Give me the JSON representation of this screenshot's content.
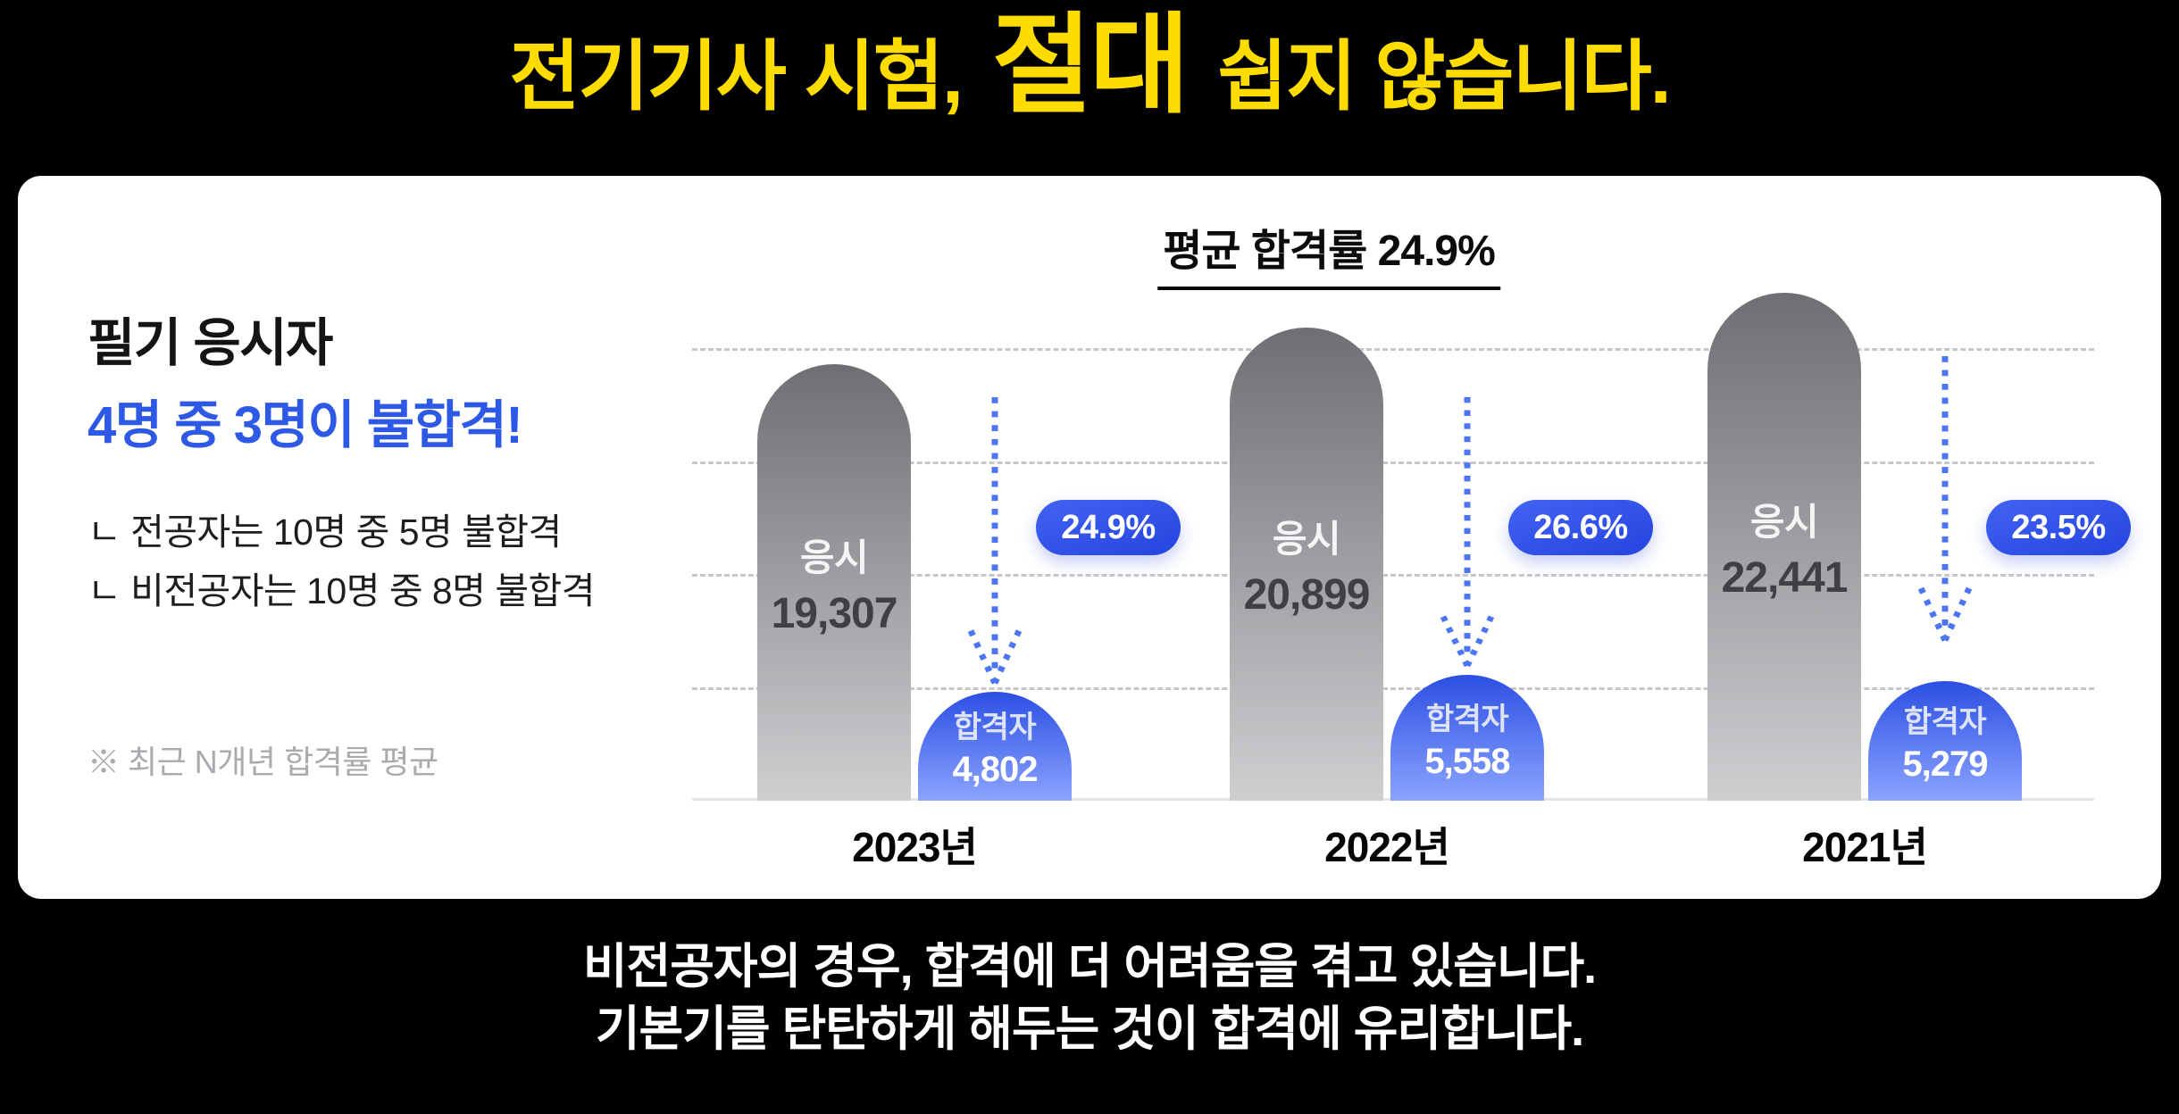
{
  "header": {
    "title_prefix": "전기기사 시험,",
    "title_emphasis": "절대",
    "title_suffix": "쉽지 않습니다."
  },
  "left_panel": {
    "heading_line1": "필기 응시자",
    "heading_line2": "4명 중 3명이 불합격!",
    "bullet1": "ㄴ 전공자는 10명 중 5명 불합격",
    "bullet2": "ㄴ 비전공자는 10명 중 8명 불합격",
    "footnote": "※ 최근 N개년 합격률 평균"
  },
  "chart_data": {
    "type": "bar",
    "title": "평균 합격률 24.9%",
    "categories": [
      "2023년",
      "2022년",
      "2021년"
    ],
    "series": [
      {
        "name": "응시",
        "values": [
          19307,
          20899,
          22441
        ]
      },
      {
        "name": "합격자",
        "values": [
          4802,
          5558,
          5279
        ]
      }
    ],
    "pass_rate_labels": [
      "24.9%",
      "26.6%",
      "23.5%"
    ],
    "ylim": [
      0,
      20000
    ],
    "gridline_interval": 5000,
    "grid": "horizontal-dashed",
    "legend_position": "none",
    "groups": [
      {
        "year": "2023년",
        "applicants_label": "응시",
        "applicants_display": "19,307",
        "applicants_value": 19307,
        "passers_label": "합격자",
        "passers_display": "4,802",
        "passers_value": 4802,
        "rate": "24.9%"
      },
      {
        "year": "2022년",
        "applicants_label": "응시",
        "applicants_display": "20,899",
        "applicants_value": 20899,
        "passers_label": "합격자",
        "passers_display": "5,558",
        "passers_value": 5558,
        "rate": "26.6%"
      },
      {
        "year": "2021년",
        "applicants_label": "응시",
        "applicants_display": "22,441",
        "applicants_value": 22441,
        "passers_label": "합격자",
        "passers_display": "5,279",
        "passers_value": 5279,
        "rate": "23.5%"
      }
    ]
  },
  "footer": {
    "line1": "비전공자의 경우, 합격에 더 어려움을 겪고 있습니다.",
    "line2": "기본기를 탄탄하게 해두는 것이 합격에 유리합니다."
  },
  "colors": {
    "background": "#000000",
    "title_yellow": "#FFDC00",
    "accent_blue": "#2E59E5",
    "badge_blue": "#2B50E8",
    "arrow_blue": "#4D75F1",
    "bar_gray_top": "#6F6F73",
    "bar_gray_bottom": "#CFCFD2",
    "bar_blue_top": "#2C4FE2",
    "bar_blue_bottom": "#8BA4FF"
  }
}
